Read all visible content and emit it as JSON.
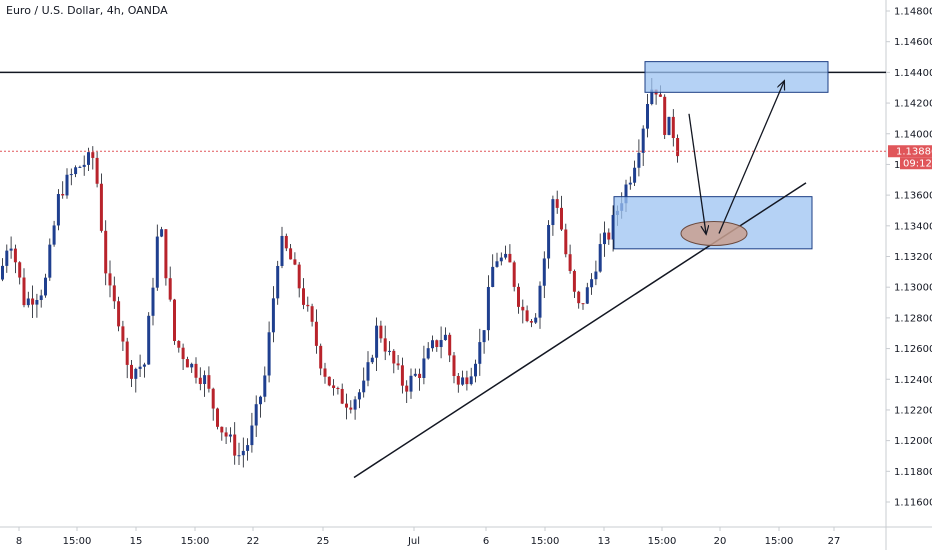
{
  "chart_data": {
    "type": "candlestick",
    "title": "Euro / U.S. Dollar, 4h, OANDA",
    "ylim": [
      1.114,
      1.148
    ],
    "y_ticks": [
      "1.14800",
      "1.14600",
      "1.14400",
      "1.14200",
      "1.14000",
      "1.13800",
      "1.13600",
      "1.13400",
      "1.13200",
      "1.13000",
      "1.12800",
      "1.12600",
      "1.12400",
      "1.12200",
      "1.12000",
      "1.11800",
      "1.11600"
    ],
    "x_ticks": [
      "8",
      "15:00",
      "15",
      "15:00",
      "22",
      "25",
      "Jul",
      "6",
      "15:00",
      "13",
      "15:00",
      "20",
      "15:00",
      "27"
    ],
    "grid": false,
    "colors": {
      "up": "#1f3f8f",
      "down": "#b8232b",
      "resistance": "#131722",
      "current_price_line": "#e0565a",
      "zone_fill": "#9cc3f2",
      "zone_border": "#1b3d84",
      "target_ellipse": "#c9a08f"
    },
    "current_price": {
      "value": "1.13886",
      "countdown": "09:12"
    },
    "annotations": {
      "resistance_level": 1.144,
      "upper_zone": [
        1.1427,
        1.1447
      ],
      "lower_zone": [
        1.1325,
        1.1359
      ],
      "trendline": {
        "from": 1.1176,
        "to": 1.1368
      },
      "target": 1.1335
    }
  }
}
